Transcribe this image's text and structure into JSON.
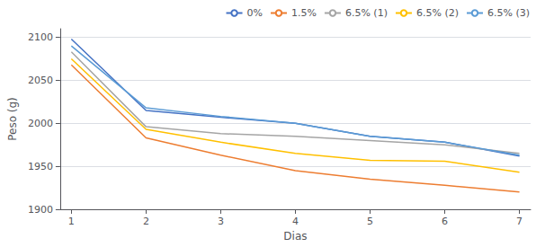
{
  "chart_data": {
    "type": "line",
    "xlabel": "Dias",
    "ylabel": "Peso (g)",
    "x": [
      1,
      2,
      3,
      4,
      5,
      6,
      7
    ],
    "series": [
      {
        "name": "0%",
        "color": "#4472C4",
        "values": [
          2098,
          2015,
          2007,
          2000,
          1985,
          1978,
          1962
        ]
      },
      {
        "name": "1.5%",
        "color": "#ED7D31",
        "values": [
          2068,
          1983,
          1963,
          1945,
          1935,
          1928,
          1920
        ]
      },
      {
        "name": "6.5% (1)",
        "color": "#A5A5A5",
        "values": [
          2083,
          1996,
          1988,
          1985,
          1980,
          1975,
          1965
        ]
      },
      {
        "name": "6.5% (2)",
        "color": "#FFC000",
        "values": [
          2075,
          1993,
          1978,
          1965,
          1957,
          1956,
          1943
        ]
      },
      {
        "name": "6.5% (3)",
        "color": "#5B9BD5",
        "values": [
          2090,
          2018,
          2008,
          2000,
          1985,
          1978,
          1963
        ]
      }
    ],
    "xlim": [
      0.85,
      7.15
    ],
    "xticks": [
      1,
      2,
      3,
      4,
      5,
      6,
      7
    ],
    "ylim": [
      1900,
      2110
    ],
    "yticks": [
      1900,
      1950,
      2000,
      2050,
      2100
    ],
    "grid": true,
    "legend": "upper right"
  }
}
